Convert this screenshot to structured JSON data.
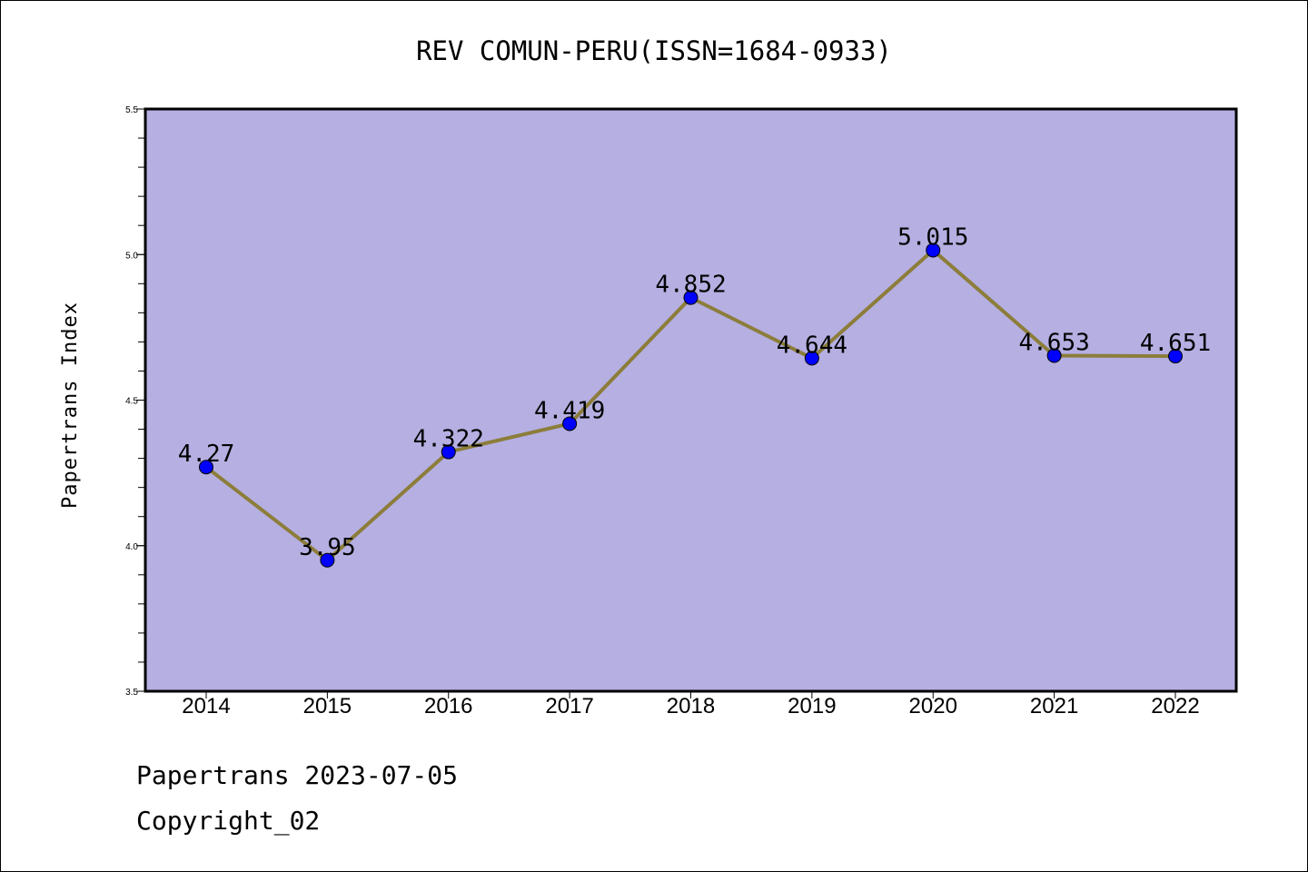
{
  "chart_data": {
    "type": "line",
    "title": "REV COMUN-PERU(ISSN=1684-0933)",
    "ylabel": "Papertrans Index",
    "xlabel": "",
    "categories": [
      "2014",
      "2015",
      "2016",
      "2017",
      "2018",
      "2019",
      "2020",
      "2021",
      "2022"
    ],
    "series": [
      {
        "values": [
          4.27,
          3.95,
          4.322,
          4.419,
          4.852,
          4.644,
          5.015,
          4.653,
          4.651
        ],
        "labels": [
          "4.27",
          "3.95",
          "4.322",
          "4.419",
          "4.852",
          "4.644",
          "5.015",
          "4.653",
          "4.651"
        ]
      }
    ],
    "ylim": [
      3.5,
      5.5
    ],
    "yticks": [
      "3.5",
      "4.0",
      "4.5",
      "5.0",
      "5.5"
    ],
    "grid": false,
    "colors": {
      "plot_background": "#b5afe2",
      "line": "#8c7d3a",
      "marker": "#0000ff"
    }
  },
  "footer": {
    "line1": "Papertrans 2023-07-05",
    "line2": "Copyright_02"
  }
}
